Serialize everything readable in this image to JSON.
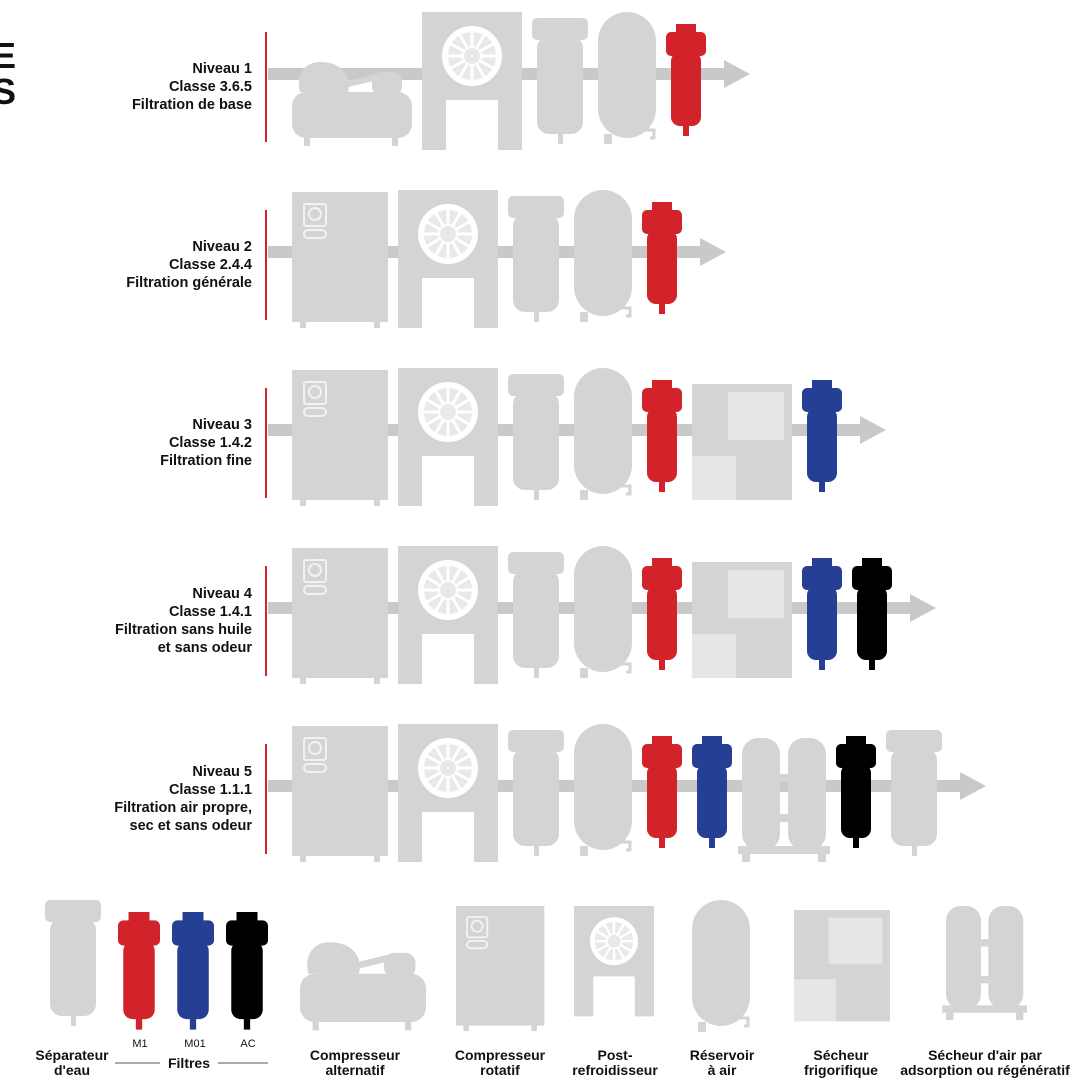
{
  "title_fragment": [
    "E",
    "S"
  ],
  "colors": {
    "grey": "#d4d4d5",
    "grey_dark": "#c9c9ca",
    "grey_light": "#e6e6e7",
    "red": "#d2232a",
    "blue": "#253f94",
    "black": "#000000",
    "divider": "#d2232a"
  },
  "levels": [
    {
      "lines": [
        "Niveau 1",
        "Classe 3.6.5",
        "Filtration de base"
      ],
      "components": [
        "reciprocating-compressor",
        "aftercooler",
        "water-separator",
        "air-receiver",
        "filter-red"
      ]
    },
    {
      "lines": [
        "Niveau 2",
        "Classe 2.4.4",
        "Filtration générale"
      ],
      "components": [
        "rotary-compressor",
        "aftercooler",
        "water-separator",
        "air-receiver",
        "filter-red"
      ]
    },
    {
      "lines": [
        "Niveau 3",
        "Classe 1.4.2",
        "Filtration fine"
      ],
      "components": [
        "rotary-compressor",
        "aftercooler",
        "water-separator",
        "air-receiver",
        "filter-red",
        "refrigerated-dryer",
        "filter-blue"
      ]
    },
    {
      "lines": [
        "Niveau 4",
        "Classe 1.4.1",
        "Filtration sans huile",
        "et sans odeur"
      ],
      "components": [
        "rotary-compressor",
        "aftercooler",
        "water-separator",
        "air-receiver",
        "filter-red",
        "refrigerated-dryer",
        "filter-blue",
        "filter-black"
      ]
    },
    {
      "lines": [
        "Niveau 5",
        "Classe 1.1.1",
        "Filtration air propre,",
        "sec et sans odeur"
      ],
      "components": [
        "rotary-compressor",
        "aftercooler",
        "water-separator",
        "air-receiver",
        "filter-red",
        "filter-blue",
        "desiccant-dryer",
        "filter-black",
        "water-separator"
      ]
    }
  ],
  "legend": {
    "water_separator": [
      "Séparateur",
      "d'eau"
    ],
    "filters_group": "Filtres",
    "filters": [
      {
        "code": "M1",
        "color": "red"
      },
      {
        "code": "M01",
        "color": "blue"
      },
      {
        "code": "AC",
        "color": "black"
      }
    ],
    "reciprocating": [
      "Compresseur",
      "alternatif"
    ],
    "rotary": [
      "Compresseur",
      "rotatif"
    ],
    "aftercooler": [
      "Post-",
      "refroidisseur"
    ],
    "receiver": [
      "Réservoir",
      "à air"
    ],
    "refrigerated_dryer": [
      "Sécheur",
      "frigorifique"
    ],
    "desiccant_dryer": [
      "Sécheur d'air par",
      "adsorption ou régénératif"
    ]
  }
}
